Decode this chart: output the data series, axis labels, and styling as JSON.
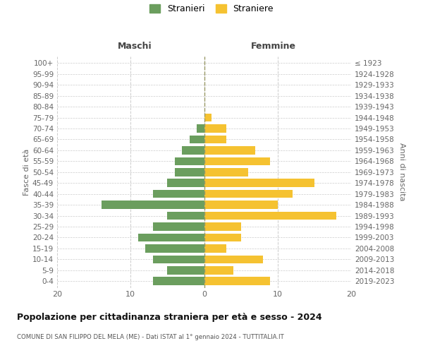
{
  "age_groups": [
    "0-4",
    "5-9",
    "10-14",
    "15-19",
    "20-24",
    "25-29",
    "30-34",
    "35-39",
    "40-44",
    "45-49",
    "50-54",
    "55-59",
    "60-64",
    "65-69",
    "70-74",
    "75-79",
    "80-84",
    "85-89",
    "90-94",
    "95-99",
    "100+"
  ],
  "birth_years": [
    "2019-2023",
    "2014-2018",
    "2009-2013",
    "2004-2008",
    "1999-2003",
    "1994-1998",
    "1989-1993",
    "1984-1988",
    "1979-1983",
    "1974-1978",
    "1969-1973",
    "1964-1968",
    "1959-1963",
    "1954-1958",
    "1949-1953",
    "1944-1948",
    "1939-1943",
    "1934-1938",
    "1929-1933",
    "1924-1928",
    "≤ 1923"
  ],
  "maschi": [
    7,
    5,
    7,
    8,
    9,
    7,
    5,
    14,
    7,
    5,
    4,
    4,
    3,
    2,
    1,
    0,
    0,
    0,
    0,
    0,
    0
  ],
  "femmine": [
    9,
    4,
    8,
    3,
    5,
    5,
    18,
    10,
    12,
    15,
    6,
    9,
    7,
    3,
    3,
    1,
    0,
    0,
    0,
    0,
    0
  ],
  "male_color": "#6b9e5e",
  "female_color": "#f5c231",
  "background_color": "#ffffff",
  "grid_color": "#cccccc",
  "title": "Popolazione per cittadinanza straniera per età e sesso - 2024",
  "subtitle": "COMUNE DI SAN FILIPPO DEL MELA (ME) - Dati ISTAT al 1° gennaio 2024 - TUTTITALIA.IT",
  "ylabel_left": "Fasce di età",
  "ylabel_right": "Anni di nascita",
  "label_maschi": "Maschi",
  "label_femmine": "Femmine",
  "legend_male": "Stranieri",
  "legend_female": "Straniere",
  "xlim": 20,
  "bar_height": 0.75
}
